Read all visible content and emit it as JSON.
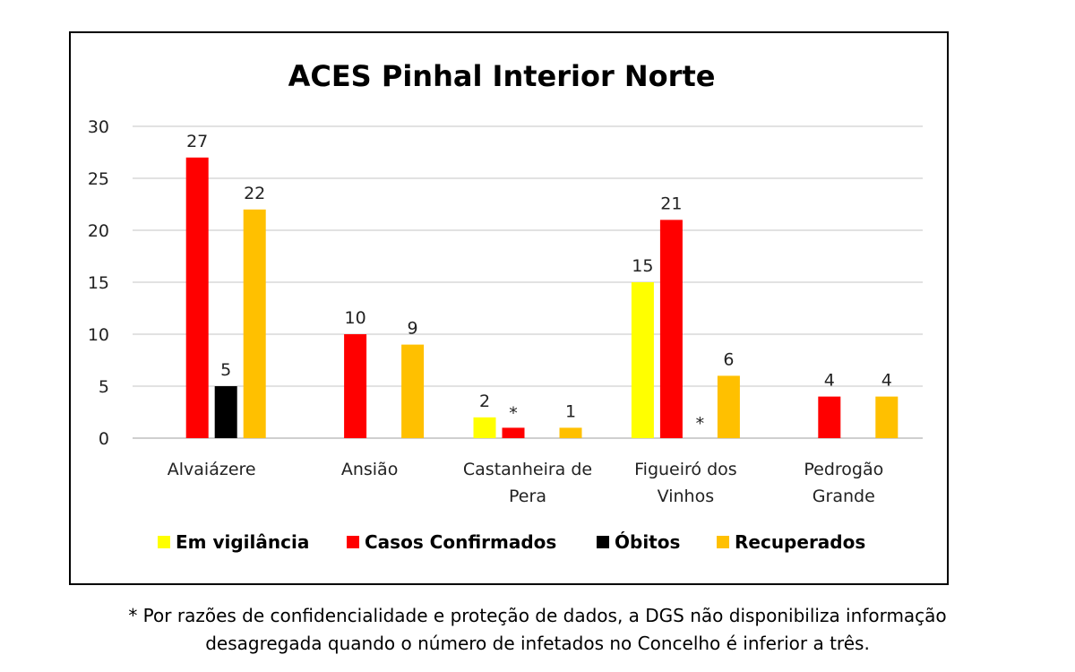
{
  "chart_data": {
    "type": "bar",
    "title": "ACES Pinhal Interior Norte",
    "categories": [
      [
        "Alvaiázere"
      ],
      [
        "Ansião"
      ],
      [
        "Castanheira de",
        "Pera"
      ],
      [
        "Figueiró dos",
        "Vinhos"
      ],
      [
        "Pedrogão",
        "Grande"
      ]
    ],
    "series": [
      {
        "name": "Em vigilância",
        "color": "#FFFF00",
        "values": [
          null,
          null,
          2,
          15,
          null
        ],
        "labels": [
          "",
          "",
          "2",
          "15",
          ""
        ]
      },
      {
        "name": "Casos Confirmados",
        "color": "#FF0000",
        "values": [
          27,
          10,
          1,
          21,
          4
        ],
        "labels": [
          "27",
          "10",
          "*",
          "21",
          "4"
        ]
      },
      {
        "name": "Óbitos",
        "color": "#000000",
        "values": [
          5,
          null,
          null,
          0,
          null
        ],
        "labels": [
          "5",
          "",
          "",
          "*",
          ""
        ]
      },
      {
        "name": "Recuperados",
        "color": "#FFC000",
        "values": [
          22,
          9,
          1,
          6,
          4
        ],
        "labels": [
          "22",
          "9",
          "1",
          "6",
          "4"
        ]
      }
    ],
    "yticks": [
      "0",
      "5",
      "10",
      "15",
      "20",
      "25",
      "30"
    ],
    "ylim": [
      0,
      30
    ],
    "grid": true,
    "legend": "bottom"
  },
  "footnote": {
    "line1": "* Por razões de confidencialidade e proteção de dados, a DGS não disponibiliza informação",
    "line2": "desagregada quando o número de infetados no Concelho é inferior a três."
  }
}
